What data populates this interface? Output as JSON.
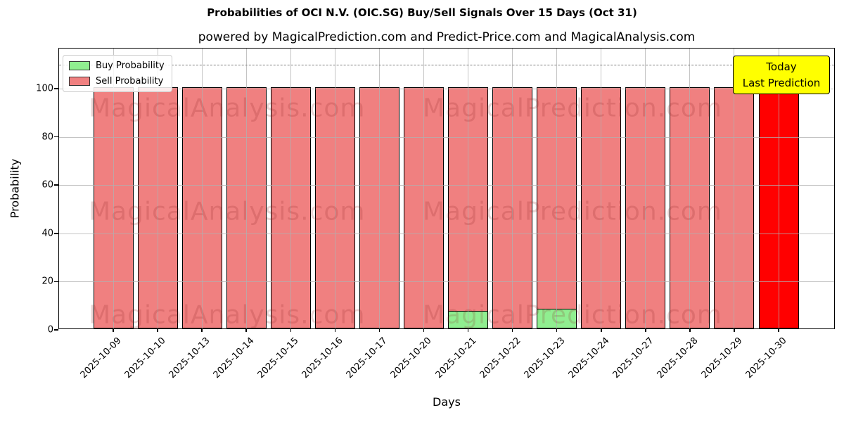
{
  "chart_data": {
    "type": "bar",
    "title": "Probabilities of OCI N.V. (OIC.SG) Buy/Sell Signals Over 15 Days (Oct 31)",
    "subtitle": "powered by MagicalPrediction.com and Predict-Price.com and MagicalAnalysis.com",
    "xlabel": "Days",
    "ylabel": "Probability",
    "categories": [
      "2025-10-09",
      "2025-10-10",
      "2025-10-13",
      "2025-10-14",
      "2025-10-15",
      "2025-10-16",
      "2025-10-17",
      "2025-10-20",
      "2025-10-21",
      "2025-10-22",
      "2025-10-23",
      "2025-10-24",
      "2025-10-27",
      "2025-10-28",
      "2025-10-29",
      "2025-10-30"
    ],
    "series": [
      {
        "name": "Buy Probability",
        "color": "#90ee90",
        "values": [
          0,
          0,
          0,
          0,
          0,
          0,
          0,
          0,
          7,
          0,
          8,
          0,
          0,
          0,
          0,
          0
        ]
      },
      {
        "name": "Sell Probability",
        "color": "#f08080",
        "values": [
          100,
          100,
          100,
          100,
          100,
          100,
          100,
          100,
          93,
          100,
          92,
          100,
          100,
          100,
          100,
          100
        ]
      }
    ],
    "last_bar_color": "#ff0000",
    "bar_total": 100,
    "ylim": [
      0,
      116.6
    ],
    "yticks": [
      0,
      20,
      40,
      60,
      80,
      100
    ],
    "dashed_line_y": 110,
    "grid": true,
    "legend_position": "upper left",
    "annotation": {
      "lines": [
        "Today",
        "Last Prediction"
      ],
      "bg_color": "#ffff00"
    },
    "watermarks": [
      "MagicalAnalysis.com",
      "MagicalPrediction.com"
    ]
  }
}
